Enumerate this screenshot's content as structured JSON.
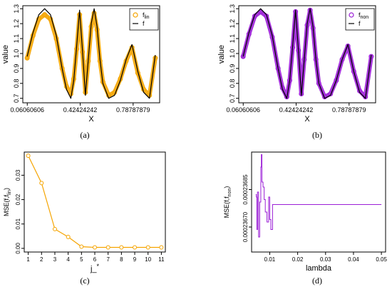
{
  "chart_data": [
    {
      "id": "a",
      "type": "line",
      "caption": "(a)",
      "xlabel": "X",
      "ylabel": "value",
      "xlim": [
        0.03,
        0.97
      ],
      "ylim": [
        0.67,
        1.32
      ],
      "xticks": [
        0.06060606,
        0.42424242,
        0.78787879
      ],
      "xtick_labels": [
        "0.06060606",
        "0.42424242",
        "0.78787879"
      ],
      "yticks": [
        0.7,
        0.8,
        0.9,
        1.0,
        1.1,
        1.2,
        1.3
      ],
      "ytick_labels": [
        "0.7",
        "0.8",
        "0.9",
        "1.0",
        "1.1",
        "1.2",
        "1.3"
      ],
      "legend": {
        "position": "top-right",
        "entries": [
          {
            "label": "f",
            "sub": "lin",
            "marker": "circle",
            "color": "#f5a400"
          },
          {
            "label": "f",
            "sub": "",
            "marker": "line",
            "color": "#000000"
          }
        ]
      },
      "series": [
        {
          "name": "f",
          "style": "line",
          "color": "#000000",
          "x": [
            0.06,
            0.1,
            0.14,
            0.18,
            0.22,
            0.26,
            0.3,
            0.33,
            0.36,
            0.38,
            0.4,
            0.42,
            0.44,
            0.46,
            0.48,
            0.5,
            0.52,
            0.54,
            0.56,
            0.58,
            0.62,
            0.66,
            0.7,
            0.74,
            0.78,
            0.82,
            0.86,
            0.9,
            0.94
          ],
          "y": [
            0.98,
            1.14,
            1.26,
            1.3,
            1.26,
            1.12,
            0.9,
            0.76,
            0.7,
            0.82,
            1.05,
            1.29,
            1.02,
            0.72,
            0.96,
            1.2,
            1.3,
            1.18,
            0.96,
            0.8,
            0.7,
            0.72,
            0.82,
            0.96,
            1.06,
            0.88,
            0.74,
            0.7,
            0.99
          ]
        },
        {
          "name": "f_lin",
          "style": "points",
          "color": "#f5a400",
          "x": [
            0.06,
            0.1,
            0.14,
            0.18,
            0.22,
            0.26,
            0.3,
            0.33,
            0.36,
            0.38,
            0.4,
            0.42,
            0.44,
            0.46,
            0.48,
            0.5,
            0.52,
            0.54,
            0.56,
            0.58,
            0.62,
            0.66,
            0.7,
            0.74,
            0.78,
            0.82,
            0.86,
            0.9,
            0.94
          ],
          "y": [
            0.97,
            1.12,
            1.23,
            1.26,
            1.23,
            1.1,
            0.9,
            0.78,
            0.73,
            0.83,
            1.03,
            1.26,
            1.01,
            0.74,
            0.95,
            1.18,
            1.27,
            1.16,
            0.95,
            0.81,
            0.72,
            0.74,
            0.83,
            0.95,
            1.04,
            0.87,
            0.76,
            0.72,
            0.97
          ]
        }
      ]
    },
    {
      "id": "b",
      "type": "line",
      "caption": "(b)",
      "xlabel": "X",
      "ylabel": "value",
      "xlim": [
        0.03,
        0.97
      ],
      "ylim": [
        0.67,
        1.32
      ],
      "xticks": [
        0.06060606,
        0.42424242,
        0.78787879
      ],
      "xtick_labels": [
        "0.06060606",
        "0.42424242",
        "0.78787879"
      ],
      "yticks": [
        0.7,
        0.8,
        0.9,
        1.0,
        1.1,
        1.2,
        1.3
      ],
      "ytick_labels": [
        "0.7",
        "0.8",
        "0.9",
        "1.0",
        "1.1",
        "1.2",
        "1.3"
      ],
      "legend": {
        "position": "top-right",
        "entries": [
          {
            "label": "f",
            "sub": "non",
            "marker": "circle",
            "color": "#9b1fd6"
          },
          {
            "label": "f",
            "sub": "",
            "marker": "line",
            "color": "#000000"
          }
        ]
      },
      "series": [
        {
          "name": "f",
          "style": "line",
          "color": "#000000",
          "x": [
            0.06,
            0.1,
            0.14,
            0.18,
            0.22,
            0.26,
            0.3,
            0.33,
            0.36,
            0.38,
            0.4,
            0.42,
            0.44,
            0.46,
            0.48,
            0.5,
            0.52,
            0.54,
            0.56,
            0.58,
            0.62,
            0.66,
            0.7,
            0.74,
            0.78,
            0.82,
            0.86,
            0.9,
            0.94
          ],
          "y": [
            0.98,
            1.14,
            1.26,
            1.3,
            1.26,
            1.12,
            0.9,
            0.76,
            0.7,
            0.82,
            1.05,
            1.29,
            1.02,
            0.72,
            0.96,
            1.2,
            1.3,
            1.18,
            0.96,
            0.8,
            0.7,
            0.72,
            0.82,
            0.96,
            1.06,
            0.88,
            0.74,
            0.7,
            0.99
          ]
        },
        {
          "name": "f_non",
          "style": "points",
          "color": "#9b1fd6",
          "x": [
            0.06,
            0.1,
            0.14,
            0.18,
            0.22,
            0.26,
            0.3,
            0.33,
            0.36,
            0.38,
            0.4,
            0.42,
            0.44,
            0.46,
            0.48,
            0.5,
            0.52,
            0.54,
            0.56,
            0.58,
            0.62,
            0.66,
            0.7,
            0.74,
            0.78,
            0.82,
            0.86,
            0.9,
            0.94
          ],
          "y": [
            0.98,
            1.13,
            1.25,
            1.28,
            1.25,
            1.11,
            0.9,
            0.77,
            0.71,
            0.82,
            1.04,
            1.28,
            1.02,
            0.73,
            0.96,
            1.19,
            1.29,
            1.17,
            0.96,
            0.8,
            0.71,
            0.73,
            0.82,
            0.96,
            1.05,
            0.88,
            0.75,
            0.71,
            0.98
          ]
        }
      ]
    },
    {
      "id": "c",
      "type": "line",
      "caption": "(c)",
      "xlabel": "j_*",
      "ylabel": "MSE(f,f",
      "ylabel_sub": "lin",
      "ylabel_suffix": ")",
      "xlim": [
        0.7,
        11.3
      ],
      "ylim": [
        -0.0015,
        0.0395
      ],
      "xticks": [
        1,
        2,
        3,
        4,
        5,
        6,
        7,
        8,
        9,
        10,
        11
      ],
      "xtick_labels": [
        "1",
        "2",
        "3",
        "4",
        "5",
        "6",
        "7",
        "8",
        "9",
        "10",
        "11"
      ],
      "yticks": [
        0.0,
        0.01,
        0.02,
        0.03
      ],
      "ytick_labels": [
        "0.00",
        "0.01",
        "0.02",
        "0.03"
      ],
      "series": [
        {
          "name": "",
          "style": "line-points",
          "color": "#f5a400",
          "x": [
            1,
            2,
            3,
            4,
            5,
            6,
            7,
            8,
            9,
            10,
            11
          ],
          "y": [
            0.038,
            0.0268,
            0.0079,
            0.0047,
            0.0007,
            0.0004,
            0.0004,
            0.0004,
            0.0004,
            0.0004,
            0.0004
          ]
        }
      ]
    },
    {
      "id": "d",
      "type": "line",
      "caption": "(d)",
      "xlabel": "lambda",
      "ylabel": "MSE(f,f",
      "ylabel_sub": "non",
      "ylabel_suffix": ")",
      "xlim": [
        0.0035,
        0.0515
      ],
      "ylim": [
        0.0002366,
        0.000237
      ],
      "xticks": [
        0.01,
        0.02,
        0.03,
        0.04,
        0.05
      ],
      "xtick_labels": [
        "0.01",
        "0.02",
        "0.03",
        "0.04",
        "0.05"
      ],
      "yticks": [
        0.0002367,
        0.00023685
      ],
      "ytick_labels": [
        "0.00023670",
        "0.00023685"
      ],
      "series": [
        {
          "name": "",
          "style": "step",
          "color": "#9b1fd6",
          "x": [
            0.005,
            0.0052,
            0.0052,
            0.0054,
            0.0054,
            0.0056,
            0.0056,
            0.006,
            0.006,
            0.0064,
            0.0064,
            0.0068,
            0.0068,
            0.007,
            0.007,
            0.0072,
            0.0072,
            0.0076,
            0.0076,
            0.008,
            0.008,
            0.0084,
            0.0084,
            0.009,
            0.009,
            0.0096,
            0.0096,
            0.01,
            0.01,
            0.0104,
            0.0104,
            0.011,
            0.011,
            0.05
          ],
          "y": [
            0.00023683,
            0.00023683,
            0.00023682,
            0.00023682,
            0.00023669,
            0.00023669,
            0.00023684,
            0.00023684,
            0.00023666,
            0.00023666,
            0.0002368,
            0.0002368,
            0.00023694,
            0.00023694,
            0.00023699,
            0.00023699,
            0.00023688,
            0.00023688,
            0.00023686,
            0.00023686,
            0.00023681,
            0.00023681,
            0.00023676,
            0.00023676,
            0.00023672,
            0.00023672,
            0.00023682,
            0.00023682,
            0.00023673,
            0.00023673,
            0.00023669,
            0.00023669,
            0.00023679,
            0.00023679
          ]
        }
      ]
    }
  ]
}
